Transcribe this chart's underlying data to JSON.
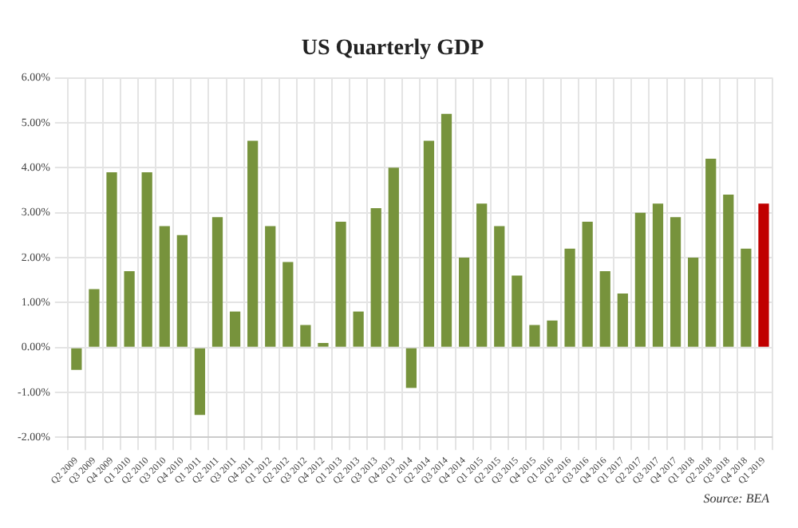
{
  "chart_data": {
    "type": "bar",
    "title": "US Quarterly GDP",
    "categories": [
      "Q2 2009",
      "Q3 2009",
      "Q4 2009",
      "Q1 2010",
      "Q2 2010",
      "Q3 2010",
      "Q4 2010",
      "Q1 2011",
      "Q2 2011",
      "Q3 2011",
      "Q4 2011",
      "Q1 2012",
      "Q2 2012",
      "Q3 2012",
      "Q4 2012",
      "Q1 2013",
      "Q2 2013",
      "Q3 2013",
      "Q4 2013",
      "Q1 2014",
      "Q2 2014",
      "Q3 2014",
      "Q4 2014",
      "Q1 2015",
      "Q2 2015",
      "Q3 2015",
      "Q4 2015",
      "Q1 2016",
      "Q2 2016",
      "Q3 2016",
      "Q4 2016",
      "Q1 2017",
      "Q2 2017",
      "Q3 2017",
      "Q4 2017",
      "Q1 2018",
      "Q2 2018",
      "Q3 2018",
      "Q4 2018",
      "Q1 2019"
    ],
    "values": [
      -0.5,
      1.3,
      3.9,
      1.7,
      3.9,
      2.7,
      2.5,
      -1.5,
      2.9,
      0.8,
      4.6,
      2.7,
      1.9,
      0.5,
      0.1,
      2.8,
      0.8,
      3.1,
      4.0,
      -0.9,
      4.6,
      5.2,
      2.0,
      3.2,
      2.7,
      1.6,
      0.5,
      0.6,
      2.2,
      2.8,
      1.7,
      1.2,
      3.0,
      3.2,
      2.9,
      2.0,
      4.2,
      3.4,
      2.2,
      3.2
    ],
    "colors": [
      "#77933c",
      "#77933c",
      "#77933c",
      "#77933c",
      "#77933c",
      "#77933c",
      "#77933c",
      "#77933c",
      "#77933c",
      "#77933c",
      "#77933c",
      "#77933c",
      "#77933c",
      "#77933c",
      "#77933c",
      "#77933c",
      "#77933c",
      "#77933c",
      "#77933c",
      "#77933c",
      "#77933c",
      "#77933c",
      "#77933c",
      "#77933c",
      "#77933c",
      "#77933c",
      "#77933c",
      "#77933c",
      "#77933c",
      "#77933c",
      "#77933c",
      "#77933c",
      "#77933c",
      "#77933c",
      "#77933c",
      "#77933c",
      "#77933c",
      "#77933c",
      "#77933c",
      "#c00000"
    ],
    "ylim": [
      -2,
      6
    ],
    "yticks": [
      {
        "value": -2,
        "label": "-2.00%"
      },
      {
        "value": -1,
        "label": "-1.00%"
      },
      {
        "value": 0,
        "label": "0.00%"
      },
      {
        "value": 1,
        "label": "1.00%"
      },
      {
        "value": 2,
        "label": "2.00%"
      },
      {
        "value": 3,
        "label": "3.00%"
      },
      {
        "value": 4,
        "label": "4.00%"
      },
      {
        "value": 5,
        "label": "5.00%"
      },
      {
        "value": 6,
        "label": "6.00%"
      }
    ],
    "grid": true,
    "annotations": [
      "Source: BEA"
    ]
  }
}
